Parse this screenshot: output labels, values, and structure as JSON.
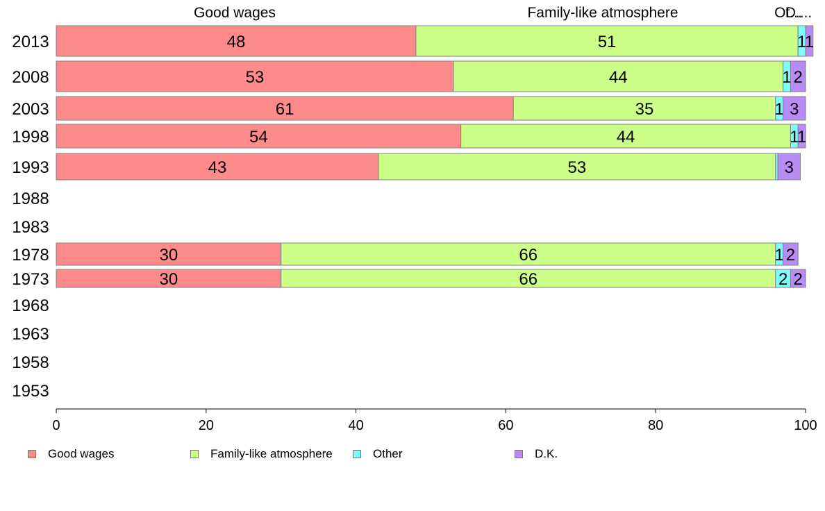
{
  "chart_data": {
    "type": "bar",
    "orientation": "horizontal",
    "stacked": true,
    "categories": [
      "2013",
      "2008",
      "2003",
      "1998",
      "1993",
      "1988",
      "1983",
      "1978",
      "1973",
      "1968",
      "1963",
      "1958",
      "1953"
    ],
    "series": [
      {
        "name": "Good wages",
        "color": "#ff8a8a",
        "values": [
          48,
          53,
          61,
          54,
          43,
          null,
          null,
          30,
          30,
          null,
          null,
          null,
          null
        ]
      },
      {
        "name": "Family-like atmosphere",
        "color": "#ccff88",
        "values": [
          51,
          44,
          35,
          44,
          53,
          null,
          null,
          66,
          66,
          null,
          null,
          null,
          null
        ]
      },
      {
        "name": "Other",
        "color": "#7ffdfd",
        "values": [
          1,
          1,
          1,
          1,
          0.3,
          null,
          null,
          1,
          2,
          null,
          null,
          null,
          null
        ]
      },
      {
        "name": "D.K.",
        "color": "#b98bf6",
        "values": [
          1,
          2,
          3,
          1,
          3,
          null,
          null,
          2,
          2,
          null,
          null,
          null,
          null
        ]
      }
    ],
    "top_labels": [
      "Good wages",
      "Family-like atmosphere",
      "Ot...",
      "D...."
    ],
    "x_ticks": [
      "0",
      "20",
      "40",
      "60",
      "80",
      "100"
    ],
    "xlim": [
      0,
      100
    ],
    "grid": false,
    "legend_position": "bottom-left"
  }
}
